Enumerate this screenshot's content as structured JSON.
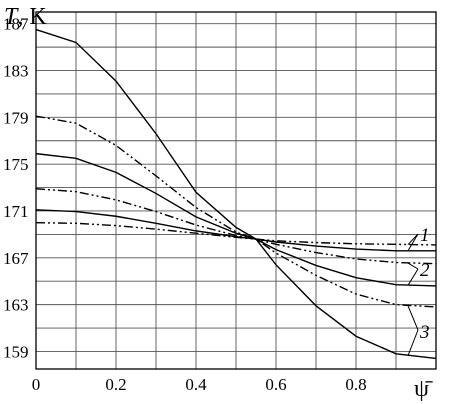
{
  "chart_data": {
    "type": "line",
    "title": "",
    "ylabel_symbol": "T",
    "ylabel_unit": ", K",
    "xlabel": "ψ̄",
    "xlim": [
      0,
      1.0
    ],
    "ylim": [
      157.5,
      188
    ],
    "x_ticks": [
      "0",
      "0.2",
      "0.4",
      "0.6",
      "0.8"
    ],
    "y_ticks": [
      "159",
      "163",
      "167",
      "171",
      "175",
      "179",
      "183",
      "187"
    ],
    "x_tick_values": [
      0,
      0.2,
      0.4,
      0.6,
      0.8
    ],
    "y_tick_values": [
      159,
      163,
      167,
      171,
      175,
      179,
      183,
      187
    ],
    "curve_labels": [
      "1",
      "2",
      "3"
    ],
    "series": [
      {
        "group": "1",
        "style": "dashdot",
        "x": [
          0,
          0.1,
          0.2,
          0.3,
          0.4,
          0.5,
          0.55,
          0.6,
          0.7,
          0.8,
          0.9,
          1.0
        ],
        "values": [
          170.0,
          169.95,
          169.75,
          169.45,
          169.1,
          168.75,
          168.6,
          168.45,
          168.3,
          168.2,
          168.15,
          168.1
        ]
      },
      {
        "group": "1",
        "style": "solid",
        "x": [
          0,
          0.1,
          0.2,
          0.3,
          0.4,
          0.5,
          0.55,
          0.6,
          0.7,
          0.8,
          0.9,
          1.0
        ],
        "values": [
          171.1,
          170.95,
          170.55,
          169.95,
          169.3,
          168.8,
          168.6,
          168.35,
          168.0,
          167.75,
          167.6,
          167.6
        ]
      },
      {
        "group": "2",
        "style": "dashdot",
        "x": [
          0,
          0.1,
          0.2,
          0.3,
          0.4,
          0.5,
          0.55,
          0.6,
          0.7,
          0.8,
          0.9,
          1.0
        ],
        "values": [
          172.9,
          172.65,
          171.95,
          170.95,
          169.8,
          168.9,
          168.6,
          168.15,
          167.45,
          166.9,
          166.6,
          166.5
        ]
      },
      {
        "group": "2",
        "style": "solid",
        "x": [
          0,
          0.1,
          0.2,
          0.3,
          0.4,
          0.5,
          0.55,
          0.6,
          0.7,
          0.8,
          0.9,
          1.0
        ],
        "values": [
          175.9,
          175.5,
          174.3,
          172.5,
          170.5,
          169.1,
          168.6,
          167.7,
          166.35,
          165.3,
          164.7,
          164.6
        ]
      },
      {
        "group": "3",
        "style": "dashdot",
        "x": [
          0,
          0.1,
          0.2,
          0.3,
          0.4,
          0.5,
          0.55,
          0.6,
          0.7,
          0.8,
          0.9,
          1.0
        ],
        "values": [
          179.1,
          178.5,
          176.6,
          174.0,
          171.3,
          169.2,
          168.6,
          167.4,
          165.5,
          163.9,
          163.0,
          162.8
        ]
      },
      {
        "group": "3",
        "style": "solid",
        "x": [
          0,
          0.1,
          0.2,
          0.3,
          0.4,
          0.5,
          0.55,
          0.6,
          0.7,
          0.8,
          0.9,
          1.0
        ],
        "values": [
          186.5,
          185.4,
          182.1,
          177.6,
          172.6,
          169.6,
          168.6,
          166.4,
          162.9,
          160.3,
          158.8,
          158.4
        ]
      }
    ],
    "grid": true,
    "line_color": "#000000",
    "grid_color": "#555555"
  }
}
